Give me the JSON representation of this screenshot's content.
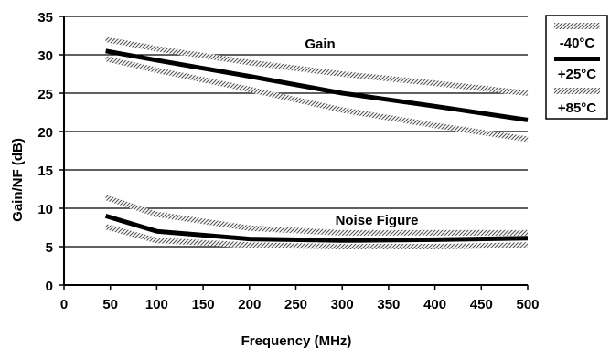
{
  "chart_data": {
    "type": "line",
    "xlabel": "Frequency (MHz)",
    "ylabel": "Gain/NF (dB)",
    "xlim": [
      0,
      500
    ],
    "ylim": [
      0,
      35
    ],
    "xticks": [
      0,
      50,
      100,
      150,
      200,
      250,
      300,
      350,
      400,
      450,
      500
    ],
    "yticks": [
      0,
      5,
      10,
      15,
      20,
      25,
      30,
      35
    ],
    "grid": "horizontal",
    "legend_position": "right",
    "annotations": [
      "Gain",
      "Noise Figure"
    ],
    "series": [
      {
        "name": "-40°C",
        "group": "gain",
        "style": "hatched",
        "x": [
          45,
          100,
          200,
          300,
          400,
          500
        ],
        "y": [
          32.0,
          30.8,
          29.0,
          27.5,
          26.3,
          25.0
        ]
      },
      {
        "name": "+25°C",
        "group": "gain",
        "style": "solid",
        "x": [
          45,
          100,
          200,
          300,
          400,
          500
        ],
        "y": [
          30.5,
          29.3,
          27.2,
          25.0,
          23.3,
          21.5
        ]
      },
      {
        "name": "+85°C",
        "group": "gain",
        "style": "hatched",
        "x": [
          45,
          100,
          200,
          300,
          400,
          500
        ],
        "y": [
          29.5,
          28.0,
          25.5,
          22.8,
          20.8,
          19.0
        ]
      },
      {
        "name": "-40°C",
        "group": "nf",
        "style": "hatched",
        "x": [
          45,
          100,
          200,
          300,
          400,
          500
        ],
        "y": [
          7.6,
          5.8,
          5.2,
          5.0,
          5.0,
          5.2
        ]
      },
      {
        "name": "+25°C",
        "group": "nf",
        "style": "solid",
        "x": [
          45,
          100,
          200,
          300,
          400,
          500
        ],
        "y": [
          9.0,
          7.0,
          6.0,
          5.8,
          5.9,
          6.1
        ]
      },
      {
        "name": "+85°C",
        "group": "nf",
        "style": "hatched",
        "x": [
          45,
          100,
          200,
          300,
          400,
          500
        ],
        "y": [
          11.4,
          9.2,
          7.4,
          6.8,
          6.8,
          6.8
        ]
      }
    ],
    "legend": [
      "-40°C",
      "+25°C",
      "+85°C"
    ]
  }
}
